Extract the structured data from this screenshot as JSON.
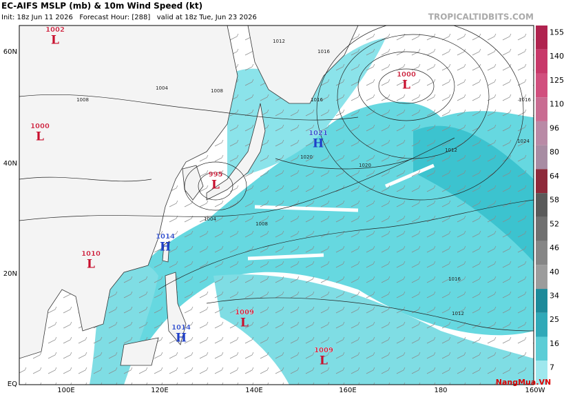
{
  "header": {
    "title": "EC-AIFS MSLP (mb) & 10m Wind Speed (kt)",
    "subtitle": "Init: 18z Jun 11 2026   Forecast Hour: [288]   valid at 18z Tue, Jun 23 2026",
    "watermark": "TROPICALTIDBITS.COM"
  },
  "lat_labels": [
    "60N",
    "40N",
    "20N",
    "EQ"
  ],
  "lon_labels": [
    "100E",
    "120E",
    "140E",
    "160E",
    "180",
    "160W"
  ],
  "centers": [
    {
      "symbol": "L",
      "pressure": "1002"
    },
    {
      "symbol": "L",
      "pressure": "1000"
    },
    {
      "symbol": "L",
      "pressure": "995"
    },
    {
      "symbol": "L",
      "pressure": "1010"
    },
    {
      "symbol": "H",
      "pressure": "1014"
    },
    {
      "symbol": "H",
      "pressure": "1014"
    },
    {
      "symbol": "L",
      "pressure": "1009"
    },
    {
      "symbol": "L",
      "pressure": "1009"
    },
    {
      "symbol": "L",
      "pressure": "1000"
    },
    {
      "symbol": "H",
      "pressure": "1021"
    }
  ],
  "isobar_labels": [
    "1012",
    "1016",
    "1008",
    "1004",
    "1008",
    "1016",
    "1020",
    "1020",
    "1024",
    "1016",
    "1012",
    "1012",
    "1016",
    "1008",
    "1004"
  ],
  "colorbar": {
    "ticks": [
      155,
      140,
      125,
      110,
      96,
      80,
      64,
      58,
      52,
      46,
      40,
      34,
      25,
      16,
      7
    ]
  },
  "logo": "NangMua.VN"
}
